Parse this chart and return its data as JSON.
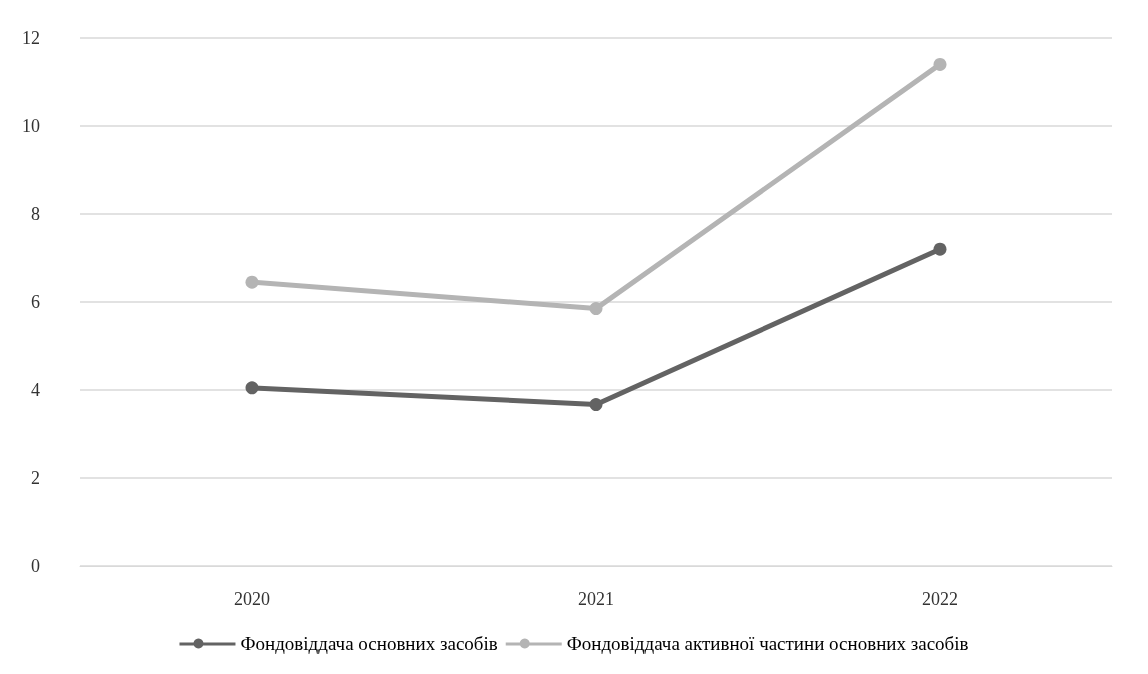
{
  "chart_data": {
    "type": "line",
    "categories": [
      "2020",
      "2021",
      "2022"
    ],
    "series": [
      {
        "name": "Фондовіддача основних засобів",
        "color": "#636363",
        "values": [
          4.05,
          3.67,
          7.2
        ]
      },
      {
        "name": "Фондовіддача активної частини основних засобів",
        "color": "#b4b4b4",
        "values": [
          6.45,
          5.85,
          11.4
        ]
      }
    ],
    "ylim": [
      0,
      12
    ],
    "yticks": [
      0,
      2,
      4,
      6,
      8,
      10,
      12
    ],
    "grid": "y",
    "legend": "bottom",
    "marker": "circle",
    "line_style": "solid"
  }
}
